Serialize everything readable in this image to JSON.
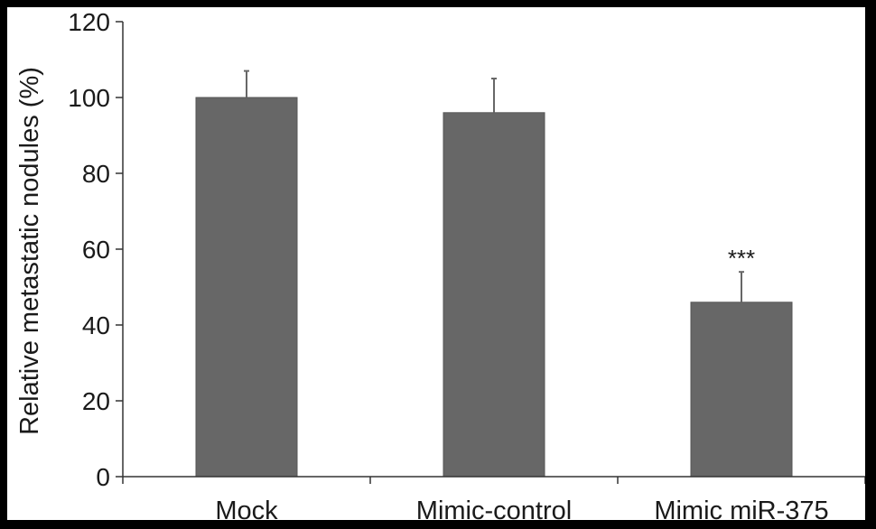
{
  "chart_data": {
    "type": "bar",
    "title": "",
    "xlabel": "",
    "ylabel": "Relative metastatic nodules (%)",
    "categories": [
      "Mock",
      "Mimic-control",
      "Mimic miR-375"
    ],
    "values": [
      100,
      96,
      46
    ],
    "errors": [
      7,
      9,
      8
    ],
    "annotations": [
      "",
      "",
      "***"
    ],
    "ylim": [
      0,
      120
    ],
    "yticks": [
      0,
      20,
      40,
      60,
      80,
      100,
      120
    ],
    "grid": false,
    "legend": "none",
    "colors": {
      "bar": "#676767",
      "axis": "#333333",
      "text": "#1a1a1a",
      "background": "#ffffff",
      "border": "#000000"
    }
  }
}
